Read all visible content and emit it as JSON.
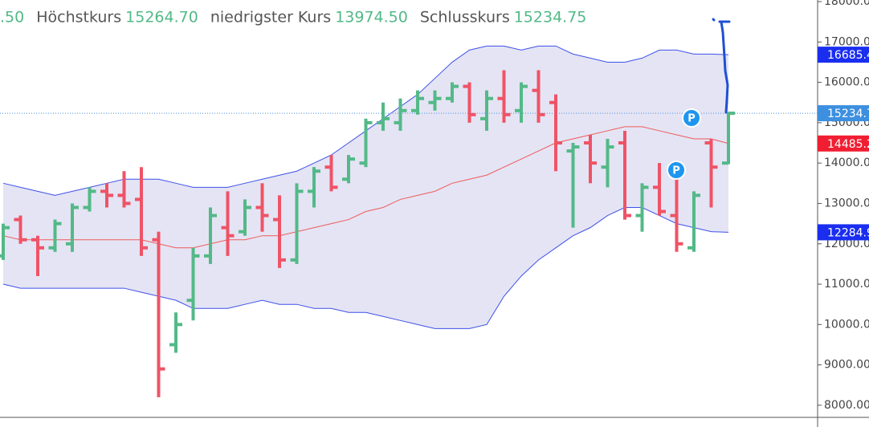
{
  "chart_data": {
    "type": "ohlc",
    "header": {
      "fragment": ".50",
      "items": [
        {
          "label": "Höchstkurs",
          "value": "15264.70"
        },
        {
          "label": "niedrigster Kurs",
          "value": "13974.50"
        },
        {
          "label": "Schlusskurs",
          "value": "15234.75"
        }
      ]
    },
    "ylim": [
      7700,
      18040
    ],
    "yticks": [
      {
        "value": 8000,
        "label": "8000.00"
      },
      {
        "value": 9000,
        "label": "9000.00"
      },
      {
        "value": 10000,
        "label": "10000.00"
      },
      {
        "value": 11000,
        "label": "11000.00"
      },
      {
        "value": 12000,
        "label": "12000.00"
      },
      {
        "value": 13000,
        "label": "13000.00"
      },
      {
        "value": 14000,
        "label": "14000.00"
      },
      {
        "value": 15000,
        "label": "15000.00"
      },
      {
        "value": 16000,
        "label": "16000.00"
      },
      {
        "value": 17000,
        "label": "17000.00"
      },
      {
        "value": 18000,
        "label": "18000.00"
      }
    ],
    "up_color": "#53b987",
    "down_color": "#ef5366",
    "ohlc": {
      "open": [
        11700,
        12600,
        12100,
        11900,
        12000,
        12900,
        13300,
        13200,
        13100,
        12100,
        9500,
        10600,
        11700,
        12400,
        12300,
        12900,
        12600,
        11600,
        13300,
        13900,
        13600,
        14000,
        15000,
        15000,
        15300,
        15500,
        15600,
        15900,
        15100,
        15600,
        15300,
        15800,
        15500,
        14300,
        14500,
        13900,
        14500,
        12700,
        13400,
        12700,
        11900,
        14500,
        14000
      ],
      "high": [
        12500,
        12700,
        12200,
        12600,
        13000,
        13400,
        13500,
        13800,
        13900,
        12300,
        10300,
        11900,
        12900,
        13300,
        13100,
        13500,
        13200,
        13500,
        13900,
        14200,
        14200,
        15100,
        15500,
        15600,
        15800,
        15800,
        16000,
        16000,
        15800,
        16300,
        16000,
        16300,
        15700,
        14500,
        14700,
        14600,
        14800,
        13500,
        14000,
        13600,
        13300,
        14600,
        15264.7
      ],
      "low": [
        11600,
        12000,
        11200,
        11800,
        11800,
        12800,
        12900,
        12900,
        11700,
        8200,
        9300,
        10100,
        11500,
        11700,
        12200,
        12300,
        11400,
        11500,
        12900,
        13300,
        13500,
        13900,
        14800,
        14800,
        15200,
        15300,
        15500,
        15000,
        14800,
        15000,
        15000,
        15000,
        13800,
        12400,
        13500,
        13400,
        12600,
        12300,
        12700,
        11800,
        11800,
        12900,
        13974.5
      ],
      "close": [
        12400,
        12100,
        11900,
        12500,
        12900,
        13300,
        13200,
        13000,
        11900,
        8900,
        10000,
        11700,
        12700,
        12200,
        12900,
        12700,
        11600,
        13300,
        13800,
        13400,
        14100,
        15000,
        15100,
        15300,
        15600,
        15600,
        15900,
        15200,
        15600,
        15200,
        15900,
        15200,
        14500,
        14400,
        14000,
        14400,
        12700,
        13400,
        12800,
        12000,
        13200,
        13900,
        15234.75
      ]
    },
    "bands": {
      "fill": "#e4e4f4",
      "line_color": "#3f51e8",
      "middle_color": "#ef5a5a",
      "upper": [
        13500,
        13400,
        13300,
        13200,
        13300,
        13400,
        13500,
        13600,
        13600,
        13600,
        13500,
        13400,
        13400,
        13400,
        13500,
        13600,
        13700,
        13800,
        14000,
        14200,
        14500,
        14800,
        15100,
        15400,
        15700,
        16100,
        16500,
        16800,
        16900,
        16900,
        16800,
        16900,
        16900,
        16700,
        16600,
        16500,
        16500,
        16600,
        16800,
        16800,
        16700,
        16700,
        16685.4
      ],
      "middle": [
        12200,
        12100,
        12100,
        12100,
        12100,
        12100,
        12100,
        12100,
        12100,
        12000,
        11900,
        11900,
        12000,
        12100,
        12100,
        12200,
        12200,
        12300,
        12400,
        12500,
        12600,
        12800,
        12900,
        13100,
        13200,
        13300,
        13500,
        13600,
        13700,
        13900,
        14100,
        14300,
        14500,
        14600,
        14700,
        14800,
        14900,
        14900,
        14800,
        14700,
        14600,
        14600,
        14485.2
      ],
      "lower": [
        11000,
        10900,
        10900,
        10900,
        10900,
        10900,
        10900,
        10900,
        10800,
        10700,
        10600,
        10400,
        10400,
        10400,
        10500,
        10600,
        10500,
        10500,
        10400,
        10400,
        10300,
        10300,
        10200,
        10100,
        10000,
        9900,
        9900,
        9900,
        10000,
        10700,
        11200,
        11600,
        11900,
        12200,
        12400,
        12700,
        12900,
        12900,
        12700,
        12500,
        12400,
        12300,
        12284.9
      ]
    },
    "markers": [
      "P",
      "P"
    ]
  }
}
